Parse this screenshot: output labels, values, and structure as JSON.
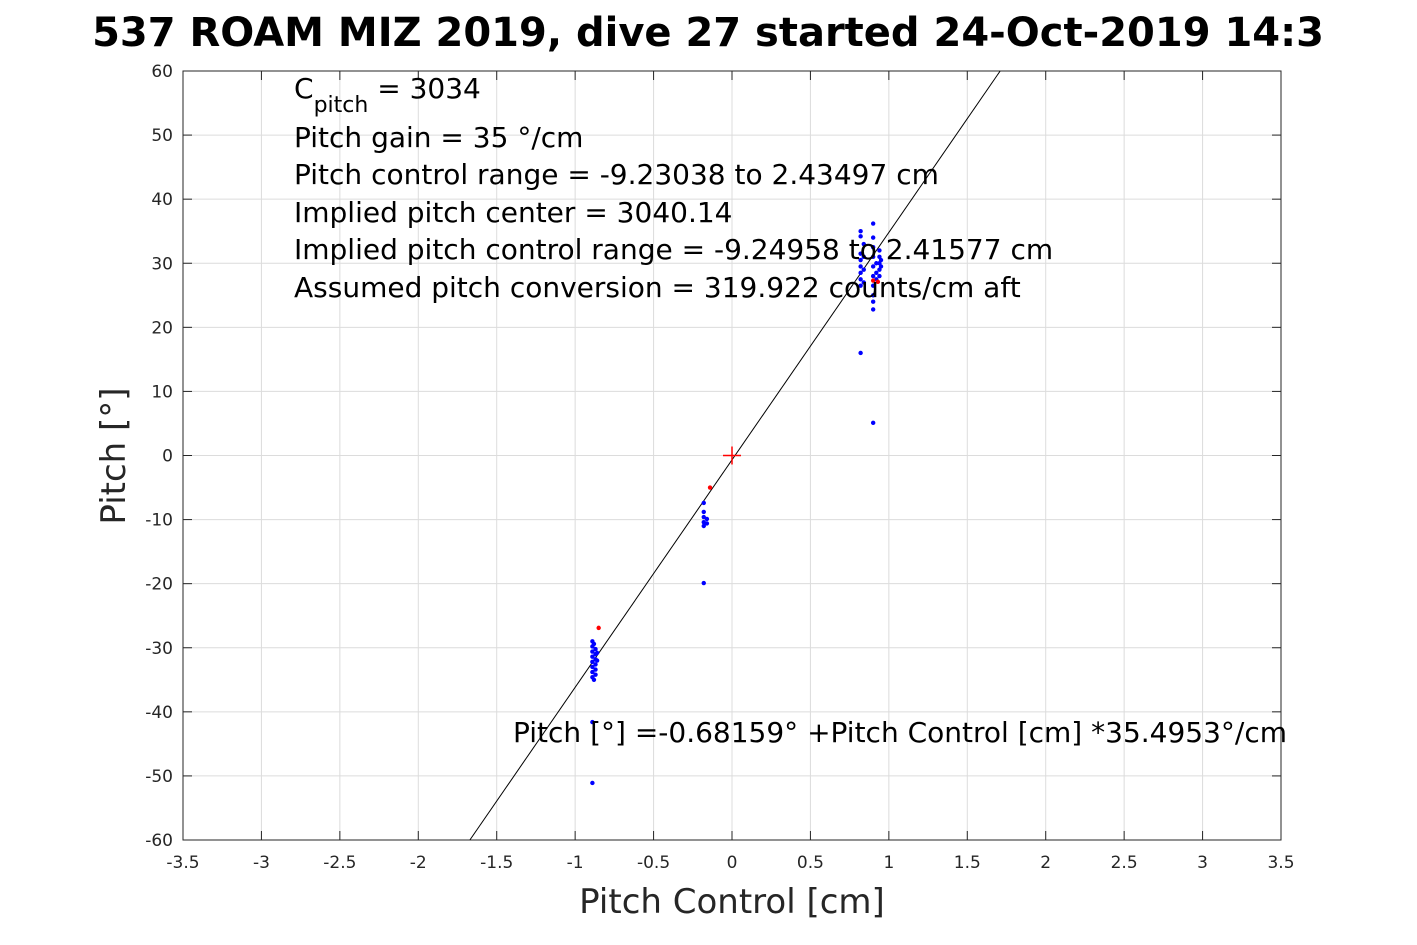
{
  "chart_data": {
    "type": "scatter",
    "title": "537 ROAM MIZ 2019, dive 27 started 24-Oct-2019 14:3",
    "xlabel": "Pitch Control [cm]",
    "ylabel": "Pitch [°]",
    "xlim": [
      -3.5,
      3.5
    ],
    "ylim": [
      -60,
      60
    ],
    "xticks": [
      -3.5,
      -3,
      -2.5,
      -2,
      -1.5,
      -1,
      -0.5,
      0,
      0.5,
      1,
      1.5,
      2,
      2.5,
      3,
      3.5
    ],
    "xtick_labels": [
      "-3.5",
      "-3",
      "-2.5",
      "-2",
      "-1.5",
      "-1",
      "-0.5",
      "0",
      "0.5",
      "1",
      "1.5",
      "2",
      "2.5",
      "3",
      "3.5"
    ],
    "yticks": [
      60,
      50,
      40,
      30,
      20,
      10,
      0,
      -10,
      -20,
      -30,
      -40,
      -50,
      -60
    ],
    "ytick_labels": [
      "60",
      "50",
      "40",
      "30",
      "20",
      "10",
      "0",
      "-10",
      "-20",
      "-30",
      "-40",
      "-50",
      "-60"
    ],
    "grid": true,
    "series": [
      {
        "color": "#0000ff",
        "marker": "dot",
        "points": [
          [
            -0.89,
            -29.0
          ],
          [
            -0.89,
            -29.8
          ],
          [
            -0.89,
            -30.6
          ],
          [
            -0.89,
            -31.4
          ],
          [
            -0.89,
            -32.2
          ],
          [
            -0.89,
            -33.0
          ],
          [
            -0.89,
            -33.8
          ],
          [
            -0.89,
            -34.6
          ],
          [
            -0.87,
            -30.2
          ],
          [
            -0.87,
            -31.0
          ],
          [
            -0.87,
            -31.8
          ],
          [
            -0.87,
            -32.6
          ],
          [
            -0.87,
            -33.4
          ],
          [
            -0.87,
            -34.2
          ],
          [
            -0.88,
            -35.0
          ],
          [
            -0.88,
            -29.4
          ],
          [
            -0.86,
            -32.0
          ],
          [
            -0.86,
            -30.8
          ],
          [
            -0.89,
            -41.6
          ],
          [
            -0.89,
            -51.1
          ],
          [
            -0.18,
            -7.4
          ],
          [
            -0.18,
            -8.8
          ],
          [
            -0.18,
            -9.6
          ],
          [
            -0.18,
            -10.4
          ],
          [
            -0.18,
            -11.0
          ],
          [
            -0.16,
            -9.9
          ],
          [
            -0.16,
            -10.6
          ],
          [
            -0.18,
            -19.9
          ],
          [
            0.82,
            35.0
          ],
          [
            0.82,
            34.2
          ],
          [
            0.82,
            31.5
          ],
          [
            0.82,
            30.5
          ],
          [
            0.82,
            29.5
          ],
          [
            0.82,
            28.5
          ],
          [
            0.82,
            27.5
          ],
          [
            0.82,
            26.5
          ],
          [
            0.84,
            33.0
          ],
          [
            0.84,
            31.0
          ],
          [
            0.84,
            29.0
          ],
          [
            0.84,
            27.0
          ],
          [
            0.9,
            36.2
          ],
          [
            0.9,
            34.0
          ],
          [
            0.9,
            32.5
          ],
          [
            0.9,
            31.0
          ],
          [
            0.9,
            29.5
          ],
          [
            0.9,
            28.0
          ],
          [
            0.9,
            26.5
          ],
          [
            0.9,
            25.0
          ],
          [
            0.9,
            24.0
          ],
          [
            0.9,
            22.8
          ],
          [
            0.92,
            30.0
          ],
          [
            0.92,
            28.5
          ],
          [
            0.92,
            27.5
          ],
          [
            0.94,
            32.0
          ],
          [
            0.94,
            31.0
          ],
          [
            0.94,
            30.0
          ],
          [
            0.94,
            29.0
          ],
          [
            0.94,
            28.0
          ],
          [
            0.95,
            30.5
          ],
          [
            0.95,
            29.5
          ],
          [
            0.82,
            16.0
          ],
          [
            0.9,
            5.1
          ]
        ]
      },
      {
        "color": "#ff0000",
        "marker": "dot",
        "points": [
          [
            -0.85,
            -26.9
          ],
          [
            -0.14,
            -5.0
          ],
          [
            0.9,
            27.3
          ],
          [
            0.93,
            27.1
          ]
        ]
      }
    ],
    "fit_line": {
      "color": "#000000",
      "intercept": -0.68159,
      "slope": 35.4953
    },
    "center_marker": {
      "color": "#ff0000",
      "x": 0,
      "y": 0
    },
    "annotations": {
      "c_pitch_main": "C",
      "c_pitch_sub": "pitch",
      "c_pitch_value": " = 3034",
      "pitch_gain": "Pitch gain = 35 °/cm",
      "control_range": "Pitch control range = -9.23038 to 2.43497 cm",
      "implied_center": "Implied pitch center = 3040.14",
      "implied_range": "Implied pitch control range = -9.24958 to 2.41577 cm",
      "conversion": "Assumed pitch conversion = 319.922 counts/cm aft",
      "fit_equation": "Pitch [°] =-0.68159° +Pitch Control [cm] *35.4953°/cm"
    }
  }
}
